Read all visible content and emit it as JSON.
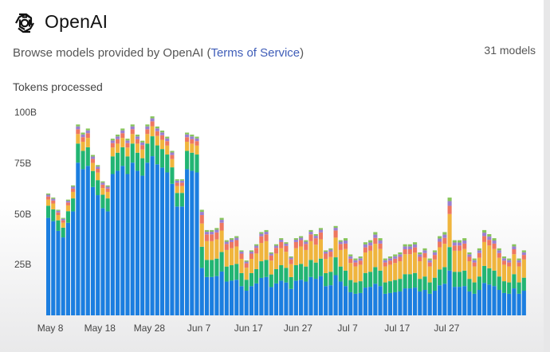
{
  "header": {
    "title": "OpenAI",
    "subtitle_prefix": "Browse models provided by OpenAI (",
    "terms_link": "Terms of Service",
    "subtitle_suffix": ")",
    "model_count": "31 models"
  },
  "chart_section": {
    "label": "Tokens processed"
  },
  "colors": {
    "series": [
      "#1b7ee0",
      "#22b573",
      "#f0b53d",
      "#ee7760",
      "#9b7fd0",
      "#87c45b"
    ]
  },
  "chart_data": {
    "type": "bar",
    "stacked": true,
    "ylim": [
      0,
      100
    ],
    "ytick_labels": [
      "100B",
      "75B",
      "50B",
      "25B"
    ],
    "ytick_values": [
      100,
      75,
      50,
      25
    ],
    "xtick_labels": [
      "May 8",
      "May 18",
      "May 28",
      "Jun 7",
      "Jun 17",
      "Jun 27",
      "Jul 7",
      "Jul 17",
      "Jul 27"
    ],
    "xtick_index": [
      0,
      10,
      20,
      30,
      40,
      50,
      60,
      70,
      80
    ],
    "totals": [
      60,
      58,
      52,
      48,
      57,
      64,
      94,
      90,
      92,
      79,
      74,
      66,
      64,
      87,
      89,
      92,
      87,
      94,
      89,
      86,
      94,
      98,
      93,
      91,
      88,
      81,
      67,
      67,
      90,
      89,
      88,
      52,
      42,
      42,
      43,
      48,
      37,
      38,
      39,
      32,
      27,
      32,
      35,
      41,
      42,
      31,
      35,
      38,
      36,
      29,
      38,
      39,
      37,
      42,
      40,
      43,
      32,
      33,
      44,
      37,
      38,
      30,
      28,
      29,
      36,
      37,
      41,
      38,
      28,
      29,
      30,
      31,
      35,
      35,
      36,
      31,
      33,
      28,
      32,
      39,
      41,
      58,
      37,
      37,
      38,
      31,
      28,
      33,
      42,
      40,
      38,
      33,
      29,
      28,
      35,
      28,
      32
    ],
    "split": [
      [
        0.8,
        0.1,
        0.05,
        0.025,
        0.015,
        0.01
      ],
      [
        0.45,
        0.2,
        0.22,
        0.08,
        0.03,
        0.02
      ],
      [
        0.38,
        0.2,
        0.28,
        0.07,
        0.04,
        0.03
      ]
    ]
  }
}
